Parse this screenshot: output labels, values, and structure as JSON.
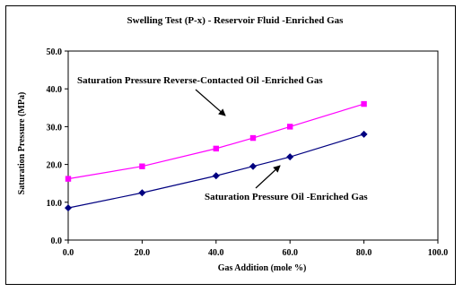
{
  "chart_data": {
    "type": "line",
    "title": "Swelling Test (P-x) - Reservoir Fluid -Enriched Gas",
    "xlabel": "Gas Addition (mole %)",
    "ylabel": "Saturation Pressure (MPa)",
    "xlim": [
      0,
      100
    ],
    "ylim": [
      0,
      50
    ],
    "xticks": [
      "0.0",
      "20.0",
      "40.0",
      "60.0",
      "80.0",
      "100.0"
    ],
    "yticks": [
      "0.0",
      "10.0",
      "20.0",
      "30.0",
      "40.0",
      "50.0"
    ],
    "grid": false,
    "series": [
      {
        "name": "Saturation Pressure Reverse-Contacted Oil -Enriched Gas",
        "color": "#ff00ff",
        "marker": "square",
        "x": [
          0,
          20,
          40,
          50,
          60,
          80
        ],
        "y": [
          16.2,
          19.5,
          24.2,
          27.0,
          30.0,
          36.0
        ]
      },
      {
        "name": "Saturation Pressure Oil -Enriched Gas",
        "color": "#000080",
        "marker": "diamond",
        "x": [
          0,
          20,
          40,
          50,
          60,
          80
        ],
        "y": [
          8.5,
          12.5,
          17.0,
          19.5,
          22.0,
          28.0
        ]
      }
    ]
  }
}
